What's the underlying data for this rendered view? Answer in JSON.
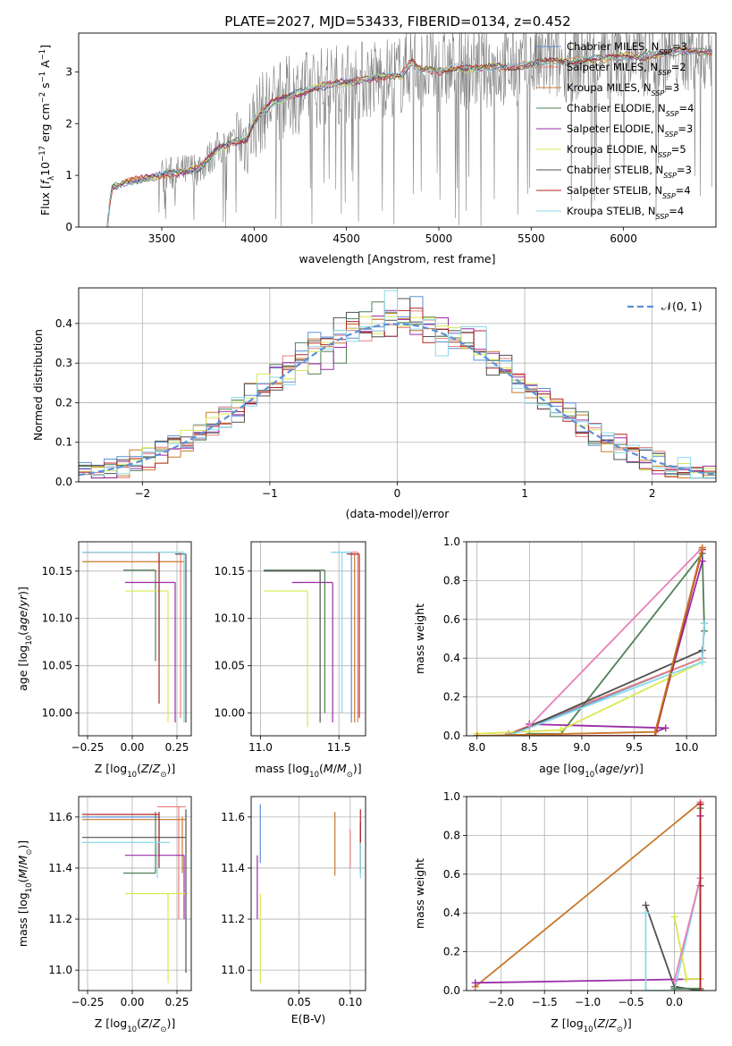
{
  "figure": {
    "title": "PLATE=2027, MJD=53433, FIBERID=0134, z=0.452"
  },
  "colors": {
    "c0": "#5b8fd9",
    "c1": "#e87e7e",
    "c2": "#c8782c",
    "c3": "#4f7f56",
    "c4": "#9a2ca5",
    "c5": "#d9e850",
    "c6": "#505050",
    "c7": "#b02525",
    "c8": "#8ad9e8",
    "c9": "#e87fb8",
    "c10": "#808080"
  },
  "models": [
    {
      "name": "Chabrier MILES",
      "n_ssp": "3",
      "color": "#5b8fd9"
    },
    {
      "name": "Salpeter MILES",
      "n_ssp": "2",
      "color": "#e87e7e"
    },
    {
      "name": "Kroupa MILES",
      "n_ssp": "3",
      "color": "#c8782c"
    },
    {
      "name": "Chabrier ELODIE",
      "n_ssp": "4",
      "color": "#4f7f56"
    },
    {
      "name": "Salpeter ELODIE",
      "n_ssp": "3",
      "color": "#9a2ca5"
    },
    {
      "name": "Kroupa ELODIE",
      "n_ssp": "5",
      "color": "#d9e850"
    },
    {
      "name": "Chabrier STELIB",
      "n_ssp": "3",
      "color": "#505050"
    },
    {
      "name": "Salpeter STELIB",
      "n_ssp": "4",
      "color": "#b02525"
    },
    {
      "name": "Kroupa STELIB",
      "n_ssp": "4",
      "color": "#8ad9e8"
    }
  ],
  "chart_data": [
    {
      "id": "spectrum",
      "type": "line",
      "xlabel": "wavelength [Angstrom, rest frame]",
      "ylabel": "Flux [f_λ 10^-17 erg cm^-2 s^-1 A^-1]",
      "xlim": [
        3050,
        6500
      ],
      "ylim": [
        0,
        3.75
      ],
      "xticks": [
        3500,
        4000,
        4500,
        5000,
        5500,
        6000
      ],
      "yticks": [
        0,
        1,
        2,
        3
      ],
      "legend": "top-right",
      "data_continuum": {
        "x": [
          3200,
          3230,
          3300,
          3400,
          3500,
          3600,
          3700,
          3750,
          3800,
          3900,
          3960,
          4000,
          4050,
          4100,
          4200,
          4300,
          4400,
          4500,
          4600,
          4700,
          4800,
          4850,
          4900,
          5000,
          5100,
          5200,
          5300,
          5400,
          5500,
          5600,
          5700,
          5800,
          5900,
          6000,
          6100,
          6200,
          6300,
          6400
        ],
        "y": [
          0.0,
          0.75,
          0.85,
          0.95,
          1.0,
          1.05,
          1.15,
          1.3,
          1.5,
          1.65,
          1.7,
          2.05,
          2.25,
          2.4,
          2.55,
          2.65,
          2.75,
          2.8,
          2.85,
          2.9,
          2.95,
          3.2,
          3.05,
          3.0,
          3.1,
          3.05,
          3.1,
          3.1,
          3.15,
          3.2,
          3.2,
          3.25,
          3.25,
          3.3,
          3.3,
          3.35,
          3.4,
          3.4
        ]
      }
    },
    {
      "id": "residuals",
      "type": "line",
      "xlabel": "(data-model)/error",
      "ylabel": "Normed distribution",
      "xlim": [
        -2.5,
        2.5
      ],
      "ylim": [
        0,
        0.49
      ],
      "xticks": [
        -2,
        -1,
        0,
        1,
        2
      ],
      "yticks": [
        0.0,
        0.1,
        0.2,
        0.3,
        0.4
      ],
      "bin_width": 0.1,
      "legend": "top-right",
      "gaussian_label": "𝒩(0, 1)"
    },
    {
      "id": "age_vs_Z",
      "type": "scatter",
      "xlabel": "Z [log10(Z/Z⊙)]",
      "ylabel": "age  [log10(age/yr)]",
      "xlim": [
        -0.3,
        0.33
      ],
      "ylim": [
        9.976,
        10.181
      ],
      "xticks": [
        -0.25,
        0.0,
        0.25
      ],
      "yticks": [
        10.0,
        10.05,
        10.1,
        10.15
      ],
      "points": [
        {
          "x": 0.15,
          "y": 10.17,
          "xmin": -0.28,
          "xmax": 0.15,
          "ymin": 10.055,
          "ymax": 10.17,
          "color": "#5b8fd9"
        },
        {
          "x": 0.27,
          "y": 10.17,
          "xmin": -0.28,
          "xmax": 0.27,
          "ymin": 9.995,
          "ymax": 10.17,
          "color": "#e87e7e"
        },
        {
          "x": 0.29,
          "y": 10.16,
          "xmin": -0.28,
          "xmax": 0.29,
          "ymin": 9.99,
          "ymax": 10.16,
          "color": "#c8782c"
        },
        {
          "x": 0.13,
          "y": 10.151,
          "xmin": -0.05,
          "xmax": 0.13,
          "ymin": 10.055,
          "ymax": 10.151,
          "color": "#4f7f56"
        },
        {
          "x": 0.24,
          "y": 10.138,
          "xmin": -0.04,
          "xmax": 0.24,
          "ymin": 9.99,
          "ymax": 10.138,
          "color": "#9a2ca5"
        },
        {
          "x": 0.2,
          "y": 10.129,
          "xmin": -0.04,
          "xmax": 0.2,
          "ymin": 9.99,
          "ymax": 10.129,
          "color": "#d9e850"
        },
        {
          "x": 0.3,
          "y": 10.168,
          "xmin": 0.24,
          "xmax": 0.3,
          "ymin": 9.99,
          "ymax": 10.168,
          "color": "#505050"
        },
        {
          "x": 0.15,
          "y": 10.17,
          "xmin": -0.28,
          "xmax": 0.15,
          "ymin": 10.01,
          "ymax": 10.17,
          "color": "#b02525"
        },
        {
          "x": 0.29,
          "y": 10.17,
          "xmin": -0.28,
          "xmax": 0.29,
          "ymin": 9.99,
          "ymax": 10.17,
          "color": "#8ad9e8"
        }
      ]
    },
    {
      "id": "age_vs_mass",
      "type": "scatter",
      "xlabel": "mass [log10(M/M⊙)]",
      "ylabel": "",
      "xlim": [
        10.94,
        11.67
      ],
      "ylim": [
        9.976,
        10.181
      ],
      "xticks": [
        11.0,
        11.5
      ],
      "yticks": [
        10.0,
        10.05,
        10.1,
        10.15
      ],
      "points": [
        {
          "x": 11.58,
          "y": 10.17,
          "xmin": 11.45,
          "xmax": 11.58,
          "ymin": 9.99,
          "ymax": 10.17,
          "color": "#5b8fd9"
        },
        {
          "x": 11.62,
          "y": 10.17,
          "xmin": 11.55,
          "xmax": 11.62,
          "ymin": 9.99,
          "ymax": 10.17,
          "color": "#e87e7e"
        },
        {
          "x": 11.6,
          "y": 10.168,
          "xmin": 11.57,
          "xmax": 11.6,
          "ymin": 9.99,
          "ymax": 10.168,
          "color": "#c8782c"
        },
        {
          "x": 11.41,
          "y": 10.151,
          "xmin": 11.02,
          "xmax": 11.41,
          "ymin": 10.0,
          "ymax": 10.151,
          "color": "#4f7f56"
        },
        {
          "x": 11.46,
          "y": 10.138,
          "xmin": 11.2,
          "xmax": 11.46,
          "ymin": 9.99,
          "ymax": 10.138,
          "color": "#9a2ca5"
        },
        {
          "x": 11.3,
          "y": 10.129,
          "xmin": 11.02,
          "xmax": 11.3,
          "ymin": 9.985,
          "ymax": 10.129,
          "color": "#d9e850"
        },
        {
          "x": 11.38,
          "y": 10.15,
          "xmin": 11.02,
          "xmax": 11.38,
          "ymin": 9.99,
          "ymax": 10.15,
          "color": "#505050"
        },
        {
          "x": 11.63,
          "y": 10.168,
          "xmin": 11.55,
          "xmax": 11.63,
          "ymin": 9.995,
          "ymax": 10.168,
          "color": "#b02525"
        },
        {
          "x": 11.52,
          "y": 10.17,
          "xmin": 11.45,
          "xmax": 11.58,
          "ymin": 10.0,
          "ymax": 10.17,
          "color": "#8ad9e8"
        }
      ]
    },
    {
      "id": "weight_vs_age",
      "type": "line",
      "xlabel": "age  [log10(age/yr)]",
      "ylabel": "mass weight",
      "xlim": [
        7.9,
        10.28
      ],
      "ylim": [
        0,
        1.0
      ],
      "xticks": [
        8.0,
        8.5,
        9.0,
        9.5,
        10.0
      ],
      "yticks": [
        0.0,
        0.2,
        0.4,
        0.6,
        0.8,
        1.0
      ],
      "series": [
        {
          "color": "#5b8fd9",
          "x": [
            8.3,
            10.15,
            10.17
          ],
          "y": [
            0.0,
            0.4,
            0.58
          ]
        },
        {
          "color": "#e87e7e",
          "x": [
            8.3,
            10.15,
            10.17
          ],
          "y": [
            0.01,
            0.4,
            0.58
          ]
        },
        {
          "color": "#4f7f56",
          "x": [
            8.5,
            8.8,
            10.15,
            10.17
          ],
          "y": [
            0.01,
            0.01,
            0.94,
            0.54
          ]
        },
        {
          "color": "#9a2ca5",
          "x": [
            8.5,
            9.8,
            9.7,
            10.15
          ],
          "y": [
            0.06,
            0.04,
            0.02,
            0.9
          ]
        },
        {
          "color": "#d9e850",
          "x": [
            8.0,
            8.8,
            10.15
          ],
          "y": [
            0.01,
            0.03,
            0.38
          ]
        },
        {
          "color": "#505050",
          "x": [
            8.3,
            10.15
          ],
          "y": [
            0.0,
            0.44
          ]
        },
        {
          "color": "#b02525",
          "x": [
            8.0,
            9.7,
            10.15
          ],
          "y": [
            0.0,
            0.0,
            0.96
          ]
        },
        {
          "color": "#8ad9e8",
          "x": [
            8.3,
            10.15,
            10.17
          ],
          "y": [
            0.0,
            0.38,
            0.58
          ]
        },
        {
          "color": "#e87fb8",
          "x": [
            8.5,
            10.15
          ],
          "y": [
            0.05,
            0.97
          ]
        },
        {
          "color": "#c8782c",
          "x": [
            8.0,
            9.7,
            10.15
          ],
          "y": [
            0.0,
            0.02,
            0.97
          ]
        }
      ]
    },
    {
      "id": "mass_vs_Z",
      "type": "scatter",
      "xlabel": "Z [log10(Z/Z⊙)]",
      "ylabel": "mass [log10(M/M⊙)]",
      "xlim": [
        -0.3,
        0.33
      ],
      "ylim": [
        10.92,
        11.68
      ],
      "xticks": [
        -0.25,
        0.0,
        0.25
      ],
      "yticks": [
        11.0,
        11.2,
        11.4,
        11.6
      ],
      "points": [
        {
          "x": 0.15,
          "y": 11.6,
          "xmin": -0.28,
          "xmax": 0.15,
          "ymin": 11.45,
          "ymax": 11.6,
          "color": "#5b8fd9"
        },
        {
          "x": 0.26,
          "y": 11.64,
          "xmin": 0.14,
          "xmax": 0.3,
          "ymin": 11.2,
          "ymax": 11.64,
          "color": "#e87e7e"
        },
        {
          "x": 0.28,
          "y": 11.59,
          "xmin": -0.28,
          "xmax": 0.3,
          "ymin": 11.38,
          "ymax": 11.6,
          "color": "#c8782c"
        },
        {
          "x": 0.13,
          "y": 11.38,
          "xmin": -0.05,
          "xmax": 0.13,
          "ymin": 11.38,
          "ymax": 11.62,
          "color": "#4f7f56"
        },
        {
          "x": 0.29,
          "y": 11.45,
          "xmin": -0.04,
          "xmax": 0.29,
          "ymin": 11.2,
          "ymax": 11.45,
          "color": "#9a2ca5"
        },
        {
          "x": 0.2,
          "y": 11.3,
          "xmin": -0.04,
          "xmax": 0.3,
          "ymin": 10.95,
          "ymax": 11.3,
          "color": "#d9e850"
        },
        {
          "x": 0.3,
          "y": 11.52,
          "xmin": -0.28,
          "xmax": 0.3,
          "ymin": 10.99,
          "ymax": 11.63,
          "color": "#505050"
        },
        {
          "x": 0.15,
          "y": 11.61,
          "xmin": -0.28,
          "xmax": 0.15,
          "ymin": 11.4,
          "ymax": 11.62,
          "color": "#b02525"
        },
        {
          "x": 0.14,
          "y": 11.5,
          "xmin": -0.28,
          "xmax": 0.21,
          "ymin": 11.36,
          "ymax": 11.5,
          "color": "#8ad9e8"
        }
      ]
    },
    {
      "id": "mass_vs_ebv",
      "type": "scatter",
      "xlabel": "E(B-V)",
      "ylabel": "",
      "xlim": [
        0.003,
        0.115
      ],
      "ylim": [
        10.92,
        11.68
      ],
      "xticks": [
        0.05,
        0.1
      ],
      "yticks": [
        11.0,
        11.2,
        11.4,
        11.6
      ],
      "points": [
        {
          "x": 0.012,
          "y": 11.65,
          "ymin": 11.42,
          "ymax": 11.65,
          "color": "#5b8fd9"
        },
        {
          "x": 0.1,
          "y": 11.53,
          "ymin": 11.4,
          "ymax": 11.55,
          "color": "#e87e7e"
        },
        {
          "x": 0.085,
          "y": 11.62,
          "ymin": 11.37,
          "ymax": 11.62,
          "color": "#c8782c"
        },
        {
          "x": 0.11,
          "y": 11.5,
          "ymin": 11.38,
          "ymax": 11.53,
          "color": "#4f7f56"
        },
        {
          "x": 0.009,
          "y": 11.45,
          "ymin": 11.2,
          "ymax": 11.45,
          "color": "#9a2ca5"
        },
        {
          "x": 0.012,
          "y": 11.3,
          "ymin": 10.95,
          "ymax": 11.3,
          "color": "#d9e850"
        },
        {
          "x": 0.11,
          "y": 11.55,
          "ymin": 11.5,
          "ymax": 11.58,
          "color": "#505050"
        },
        {
          "x": 0.11,
          "y": 11.63,
          "ymin": 11.4,
          "ymax": 11.63,
          "color": "#b02525"
        },
        {
          "x": 0.11,
          "y": 11.5,
          "ymin": 11.36,
          "ymax": 11.5,
          "color": "#8ad9e8"
        }
      ]
    },
    {
      "id": "weight_vs_Z",
      "type": "line",
      "xlabel": "Z [log10(Z/Z⊙)]",
      "ylabel": "mass weight",
      "xlim": [
        -2.4,
        0.48
      ],
      "ylim": [
        0,
        1.0
      ],
      "xticks": [
        -2.0,
        -1.5,
        -1.0,
        -0.5,
        0.0
      ],
      "yticks": [
        0.0,
        0.2,
        0.4,
        0.6,
        0.8,
        1.0
      ],
      "series": [
        {
          "color": "#c8782c",
          "x": [
            -2.3,
            0.3
          ],
          "y": [
            0.02,
            0.97
          ]
        },
        {
          "color": "#9a2ca5",
          "x": [
            -2.3,
            0.3,
            0.3
          ],
          "y": [
            0.04,
            0.06,
            0.9
          ]
        },
        {
          "color": "#505050",
          "x": [
            -0.33,
            0.0,
            0.3,
            0.3
          ],
          "y": [
            0.44,
            0.02,
            0.0,
            0.54
          ]
        },
        {
          "color": "#8ad9e8",
          "x": [
            -0.33,
            -0.33,
            0.0,
            0.3
          ],
          "y": [
            0.4,
            0.0,
            0.0,
            0.58
          ]
        },
        {
          "color": "#d9e850",
          "x": [
            0.0,
            0.14,
            0.3
          ],
          "y": [
            0.38,
            0.06,
            0.06
          ]
        },
        {
          "color": "#4f7f56",
          "x": [
            0.0,
            0.3,
            0.3
          ],
          "y": [
            0.01,
            0.01,
            0.94
          ]
        },
        {
          "color": "#e87fb8",
          "x": [
            0.0,
            0.3,
            0.3
          ],
          "y": [
            0.05,
            0.58,
            0.97
          ]
        },
        {
          "color": "#b02525",
          "x": [
            0.3,
            0.3
          ],
          "y": [
            0.0,
            0.96
          ]
        }
      ]
    }
  ]
}
